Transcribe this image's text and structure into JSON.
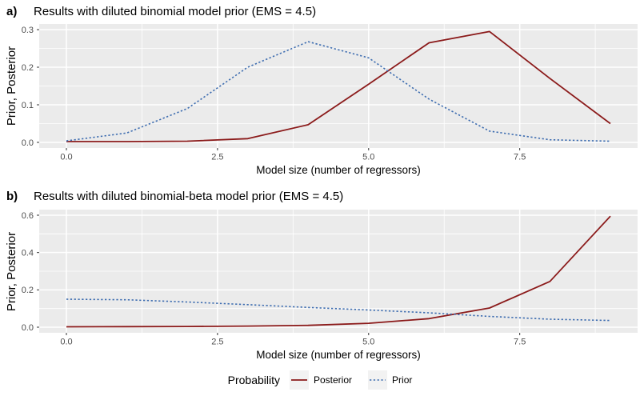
{
  "figure": {
    "panels": [
      {
        "label": "a)",
        "title": "Results with diluted binomial model prior (EMS = 4.5)"
      },
      {
        "label": "b)",
        "title": "Results with diluted binomial-beta model prior (EMS = 4.5)"
      }
    ],
    "legend": {
      "title": "Probability",
      "position": "bottom-center",
      "entries": [
        {
          "label": "Posterior",
          "style": "solid",
          "color": "#8B1A1A"
        },
        {
          "label": "Prior",
          "style": "dashed",
          "color": "#3E6DB0"
        }
      ]
    },
    "colors": {
      "panel_bg": "#EBEBEB",
      "grid": "#FFFFFF",
      "tick_mark": "#333333",
      "tick_text": "#4D4D4D",
      "posterior": "#8B1A1A",
      "prior": "#3E6DB0",
      "legend_key_bg": "#F2F2F2"
    }
  },
  "chart_data": [
    {
      "type": "line",
      "panel": "a",
      "title": "Results with diluted binomial model prior (EMS = 4.5)",
      "xlabel": "Model size (number of regressors)",
      "ylabel": "Prior, Posterior",
      "x": [
        0,
        1,
        2,
        3,
        4,
        5,
        6,
        7,
        8,
        9
      ],
      "series": [
        {
          "name": "Posterior",
          "style": "solid",
          "color": "#8B1A1A",
          "values": [
            0.002,
            0.002,
            0.003,
            0.01,
            0.047,
            0.155,
            0.265,
            0.295,
            0.17,
            0.05
          ]
        },
        {
          "name": "Prior",
          "style": "dashed",
          "color": "#3E6DB0",
          "values": [
            0.004,
            0.025,
            0.09,
            0.2,
            0.268,
            0.225,
            0.115,
            0.03,
            0.007,
            0.003
          ]
        }
      ],
      "xlim": [
        0,
        9
      ],
      "ylim": [
        0,
        0.3
      ],
      "xticks": [
        0.0,
        2.5,
        5.0,
        7.5
      ],
      "yticks": [
        0.0,
        0.1,
        0.2,
        0.3
      ],
      "xminor": [
        1.25,
        3.75,
        6.25,
        8.75
      ],
      "yminor": [
        0.05,
        0.15,
        0.25
      ],
      "grid": true
    },
    {
      "type": "line",
      "panel": "b",
      "title": "Results with diluted binomial-beta model prior (EMS = 4.5)",
      "xlabel": "Model size (number of regressors)",
      "ylabel": "Prior, Posterior",
      "x": [
        0,
        1,
        2,
        3,
        4,
        5,
        6,
        7,
        8,
        9
      ],
      "series": [
        {
          "name": "Posterior",
          "style": "solid",
          "color": "#8B1A1A",
          "values": [
            0.002,
            0.003,
            0.004,
            0.006,
            0.01,
            0.021,
            0.046,
            0.103,
            0.245,
            0.595
          ]
        },
        {
          "name": "Prior",
          "style": "dashed",
          "color": "#3E6DB0",
          "values": [
            0.15,
            0.147,
            0.135,
            0.121,
            0.106,
            0.092,
            0.077,
            0.058,
            0.043,
            0.036
          ]
        }
      ],
      "xlim": [
        0,
        9
      ],
      "ylim": [
        0,
        0.6
      ],
      "xticks": [
        0.0,
        2.5,
        5.0,
        7.5
      ],
      "yticks": [
        0.0,
        0.2,
        0.4,
        0.6
      ],
      "xminor": [
        1.25,
        3.75,
        6.25,
        8.75
      ],
      "yminor": [
        0.1,
        0.3,
        0.5
      ],
      "grid": true
    }
  ]
}
